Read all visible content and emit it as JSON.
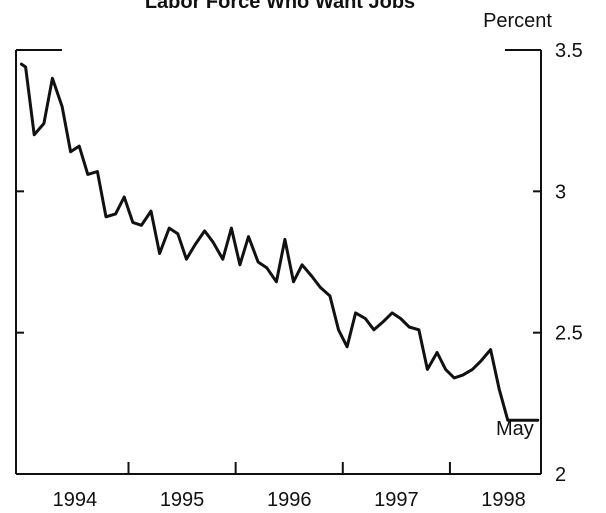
{
  "chart_data": {
    "type": "line",
    "title": "Labor Force Who Want Jobs",
    "ylabel": "Percent",
    "xlabel": "",
    "grid": false,
    "xlim": [
      1993.45,
      1998.35
    ],
    "ylim": [
      2,
      3.5
    ],
    "x_tick_positions": [
      1994,
      1995,
      1996,
      1997,
      1998
    ],
    "x_tick_labels": [
      "1994",
      "1995",
      "1996",
      "1997",
      "1998"
    ],
    "y_ticks": [
      2,
      2.5,
      3,
      3.5
    ],
    "y_tick_labels": [
      "2",
      "2.5",
      "3",
      "3.5"
    ],
    "annotation": "May",
    "series": [
      {
        "x": [
          1993.5,
          1993.54,
          1993.62,
          1993.71,
          1993.79,
          1993.88,
          1993.96,
          1994.04,
          1994.12,
          1994.21,
          1994.29,
          1994.38,
          1994.46,
          1994.54,
          1994.62,
          1994.71,
          1994.79,
          1994.88,
          1994.96,
          1995.04,
          1995.12,
          1995.21,
          1995.29,
          1995.38,
          1995.46,
          1995.54,
          1995.62,
          1995.71,
          1995.79,
          1995.88,
          1995.96,
          1996.04,
          1996.12,
          1996.21,
          1996.29,
          1996.38,
          1996.46,
          1996.54,
          1996.62,
          1996.71,
          1996.79,
          1996.88,
          1996.96,
          1997.04,
          1997.12,
          1997.21,
          1997.29,
          1997.38,
          1997.46,
          1997.54,
          1997.62,
          1997.71,
          1997.79,
          1997.88,
          1997.96,
          1998.04,
          1998.12,
          1998.21,
          1998.29,
          1998.32
        ],
        "values": [
          3.45,
          3.44,
          3.2,
          3.24,
          3.4,
          3.3,
          3.14,
          3.16,
          3.06,
          3.07,
          2.91,
          2.92,
          2.98,
          2.89,
          2.88,
          2.93,
          2.78,
          2.87,
          2.85,
          2.76,
          2.81,
          2.86,
          2.82,
          2.76,
          2.87,
          2.74,
          2.84,
          2.75,
          2.73,
          2.68,
          2.83,
          2.68,
          2.74,
          2.7,
          2.66,
          2.63,
          2.51,
          2.45,
          2.57,
          2.55,
          2.51,
          2.54,
          2.57,
          2.55,
          2.52,
          2.51,
          2.37,
          2.43,
          2.37,
          2.34,
          2.35,
          2.37,
          2.4,
          2.44,
          2.3,
          2.19,
          2.19,
          2.19,
          2.19,
          2.19
        ]
      }
    ]
  }
}
